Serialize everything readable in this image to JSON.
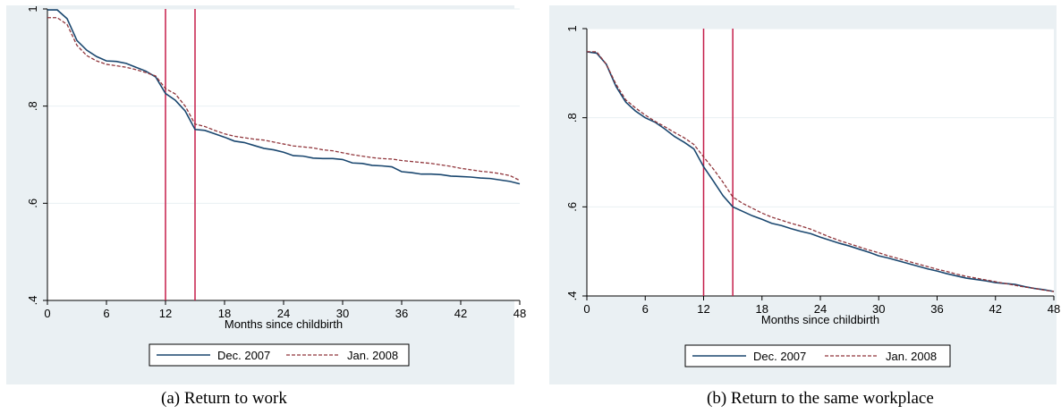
{
  "captions": [
    "(a)  Return to work",
    "(b)  Return to the same workplace"
  ],
  "colors": {
    "panel_bg": "#eaf0f3",
    "plot_bg": "#ffffff",
    "grid": "#eaf0f3",
    "series_dec": "#1a476f",
    "series_jan": "#90353b",
    "vline": "#c51f4a"
  },
  "chart_data": [
    {
      "type": "line",
      "title": "",
      "xlabel": "Months since childbirth",
      "ylabel": "",
      "xlim": [
        0,
        48
      ],
      "ylim": [
        0.4,
        1.0
      ],
      "xticks": [
        0,
        6,
        12,
        18,
        24,
        30,
        36,
        42,
        48
      ],
      "yticks": [
        0.4,
        0.6,
        0.8,
        1.0
      ],
      "ytick_labels": [
        ".4",
        ".6",
        ".8",
        "1"
      ],
      "vlines": [
        12,
        15
      ],
      "grid": true,
      "legend_position": "bottom",
      "x": [
        0,
        1,
        2,
        3,
        4,
        5,
        6,
        7,
        8,
        9,
        10,
        11,
        12,
        13,
        14,
        15,
        16,
        17,
        18,
        19,
        20,
        21,
        22,
        23,
        24,
        25,
        26,
        27,
        28,
        29,
        30,
        31,
        32,
        33,
        34,
        35,
        36,
        37,
        38,
        39,
        40,
        41,
        42,
        43,
        44,
        45,
        46,
        47,
        48
      ],
      "series": [
        {
          "name": "Dec. 2007",
          "style": "solid",
          "values": [
            0.998,
            0.998,
            0.98,
            0.935,
            0.915,
            0.902,
            0.893,
            0.892,
            0.888,
            0.88,
            0.872,
            0.86,
            0.826,
            0.812,
            0.79,
            0.752,
            0.75,
            0.743,
            0.736,
            0.728,
            0.725,
            0.719,
            0.713,
            0.71,
            0.705,
            0.698,
            0.697,
            0.693,
            0.692,
            0.692,
            0.69,
            0.683,
            0.682,
            0.678,
            0.677,
            0.675,
            0.665,
            0.663,
            0.66,
            0.66,
            0.659,
            0.656,
            0.655,
            0.654,
            0.652,
            0.651,
            0.648,
            0.645,
            0.64
          ]
        },
        {
          "name": "Jan. 2008",
          "style": "dashed",
          "values": [
            0.982,
            0.982,
            0.968,
            0.925,
            0.904,
            0.893,
            0.886,
            0.883,
            0.88,
            0.875,
            0.869,
            0.862,
            0.836,
            0.825,
            0.8,
            0.763,
            0.758,
            0.75,
            0.743,
            0.738,
            0.735,
            0.732,
            0.73,
            0.726,
            0.722,
            0.718,
            0.716,
            0.714,
            0.71,
            0.708,
            0.704,
            0.7,
            0.697,
            0.694,
            0.692,
            0.691,
            0.688,
            0.686,
            0.684,
            0.682,
            0.679,
            0.676,
            0.672,
            0.669,
            0.666,
            0.664,
            0.661,
            0.657,
            0.647
          ]
        }
      ]
    },
    {
      "type": "line",
      "title": "",
      "xlabel": "Months since childbirth",
      "ylabel": "",
      "xlim": [
        0,
        48
      ],
      "ylim": [
        0.4,
        1.0
      ],
      "xticks": [
        0,
        6,
        12,
        18,
        24,
        30,
        36,
        42,
        48
      ],
      "yticks": [
        0.4,
        0.6,
        0.8,
        1.0
      ],
      "ytick_labels": [
        ".4",
        ".6",
        ".8",
        "1"
      ],
      "vlines": [
        12,
        15
      ],
      "grid": true,
      "legend_position": "bottom",
      "x": [
        0,
        1,
        2,
        3,
        4,
        5,
        6,
        7,
        8,
        9,
        10,
        11,
        12,
        13,
        14,
        15,
        16,
        17,
        18,
        19,
        20,
        21,
        22,
        23,
        24,
        25,
        26,
        27,
        28,
        29,
        30,
        31,
        32,
        33,
        34,
        35,
        36,
        37,
        38,
        39,
        40,
        41,
        42,
        43,
        44,
        45,
        46,
        47,
        48
      ],
      "series": [
        {
          "name": "Dec. 2007",
          "style": "solid",
          "values": [
            0.948,
            0.945,
            0.92,
            0.87,
            0.835,
            0.815,
            0.8,
            0.79,
            0.775,
            0.758,
            0.745,
            0.73,
            0.69,
            0.658,
            0.625,
            0.6,
            0.59,
            0.58,
            0.572,
            0.563,
            0.558,
            0.551,
            0.545,
            0.54,
            0.532,
            0.525,
            0.518,
            0.512,
            0.505,
            0.498,
            0.49,
            0.485,
            0.479,
            0.473,
            0.467,
            0.461,
            0.456,
            0.45,
            0.445,
            0.44,
            0.437,
            0.434,
            0.43,
            0.428,
            0.426,
            0.421,
            0.417,
            0.414,
            0.41
          ]
        },
        {
          "name": "Jan. 2008",
          "style": "dashed",
          "values": [
            0.948,
            0.948,
            0.92,
            0.875,
            0.84,
            0.822,
            0.806,
            0.792,
            0.78,
            0.767,
            0.755,
            0.74,
            0.712,
            0.685,
            0.655,
            0.622,
            0.608,
            0.597,
            0.586,
            0.577,
            0.57,
            0.563,
            0.557,
            0.55,
            0.541,
            0.532,
            0.524,
            0.517,
            0.51,
            0.503,
            0.497,
            0.49,
            0.484,
            0.478,
            0.472,
            0.466,
            0.46,
            0.455,
            0.449,
            0.444,
            0.44,
            0.436,
            0.432,
            0.428,
            0.424,
            0.42,
            0.417,
            0.413,
            0.41
          ]
        }
      ]
    }
  ]
}
